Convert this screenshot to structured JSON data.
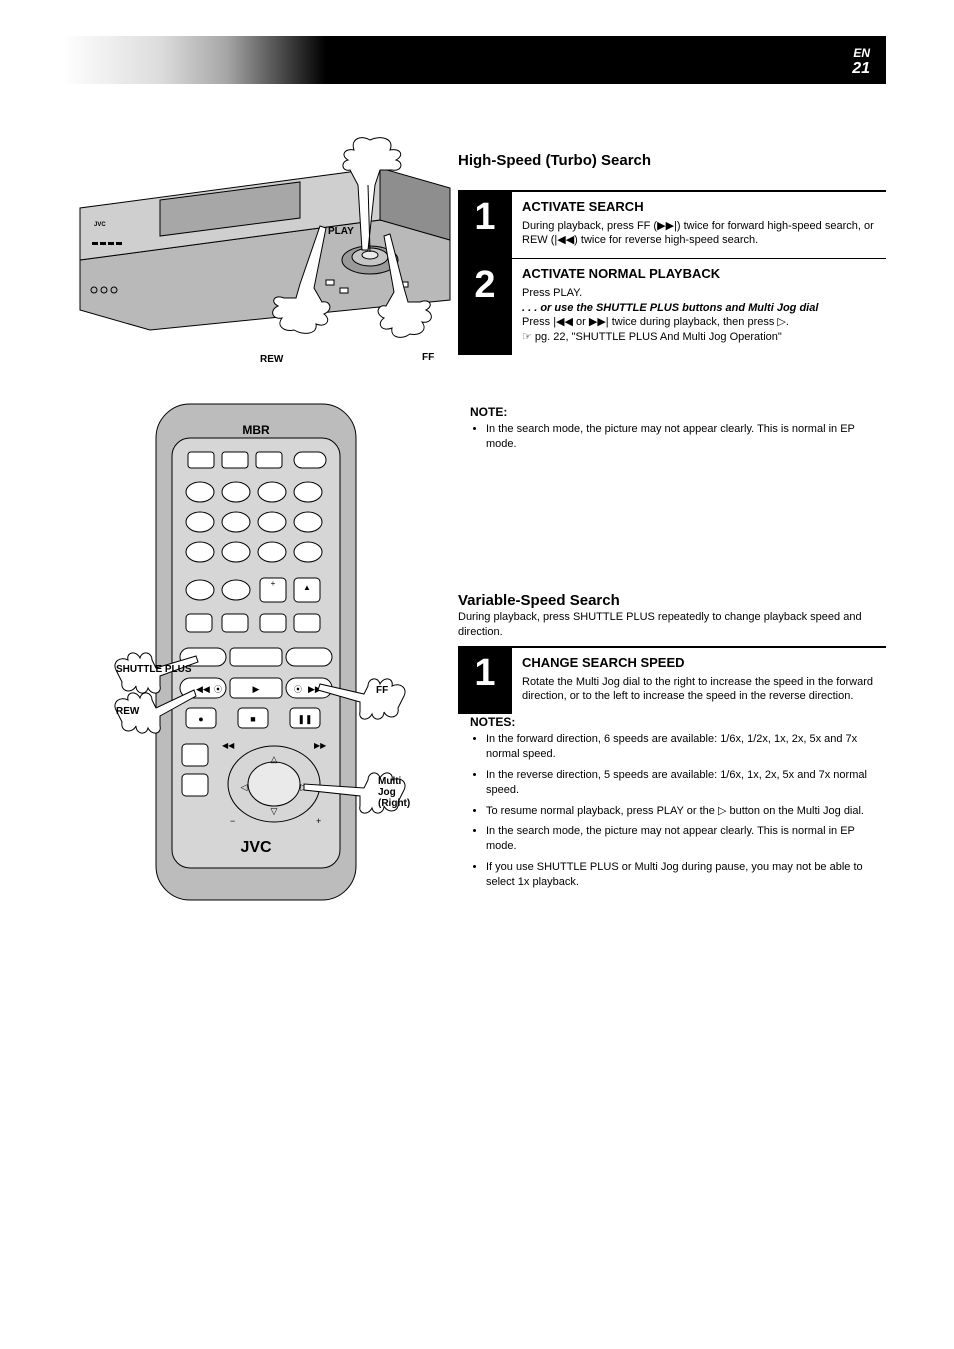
{
  "page": {
    "lang": "EN",
    "number": "21"
  },
  "vcr": {
    "labels": {
      "play": "PLAY",
      "rew": "REW",
      "ff": "FF"
    }
  },
  "remote": {
    "logo_top": "MBR",
    "logo_bottom": "JVC",
    "labels": {
      "shuttle_plus": "SHUTTLE PLUS",
      "rew": "REW",
      "ff": "FF",
      "multi_jog_right": "Multi Jog",
      "multi_jog_right_line2": "(Right)"
    }
  },
  "sections": {
    "high_speed": {
      "title": "High-Speed (Turbo) Search",
      "blurb": "",
      "steps": [
        {
          "num": "1",
          "title": "ACTIVATE SEARCH",
          "body_html": "During playback, press FF (<span class='glyph'>▶▶|</span>) twice for forward high-speed search, or REW (<span class='glyph'>|◀◀</span>) twice for reverse high-speed search."
        },
        {
          "num": "2",
          "title": "ACTIVATE NORMAL PLAYBACK",
          "body_html": "Press PLAY.<br><span class='or-break'>. . . or use the SHUTTLE PLUS buttons and Multi Jog dial</span><br>Press <span class='glyph'>|◀◀</span> or <span class='glyph'>▶▶|</span> twice during playback, then press <span class='glyph'>▷</span>.<br><span class='pgref'>☞</span> pg. 22, \"SHUTTLE PLUS And Multi Jog Operation\""
        }
      ],
      "notes_hdr": "NOTE:",
      "notes": [
        "In the search mode, the picture may not appear clearly. This is normal in EP mode."
      ]
    },
    "variable_speed": {
      "title": "Variable-Speed Search",
      "blurb": "During playback, press SHUTTLE PLUS repeatedly to change playback speed and direction.",
      "steps": [
        {
          "num": "1",
          "title": "CHANGE SEARCH SPEED",
          "body_html": "Rotate the Multi Jog dial to the right to increase the speed in the forward direction, or to the left to increase the speed in the reverse direction."
        }
      ],
      "notes_hdr": "NOTES:",
      "notes": [
        "In the forward direction, 6 speeds are available: 1/6x, 1/2x, 1x, 2x, 5x and 7x normal speed.",
        "In the reverse direction, 5 speeds are available: 1/6x, 1x, 2x, 5x and 7x normal speed.",
        "To resume normal playback, press PLAY or the <span class='glyph'>▷</span> button on the Multi Jog dial.",
        "In the search mode, the picture may not appear clearly. This is normal in EP mode.",
        "If you use SHUTTLE PLUS or Multi Jog during pause, you may not be able to select 1x playback."
      ]
    }
  },
  "colors": {
    "vcr_body": "#b9b9b9",
    "vcr_shadow": "#7a7a7a",
    "remote_body": "#bcbcbc",
    "remote_face": "#d4d4d4",
    "black": "#000000",
    "white": "#ffffff"
  }
}
